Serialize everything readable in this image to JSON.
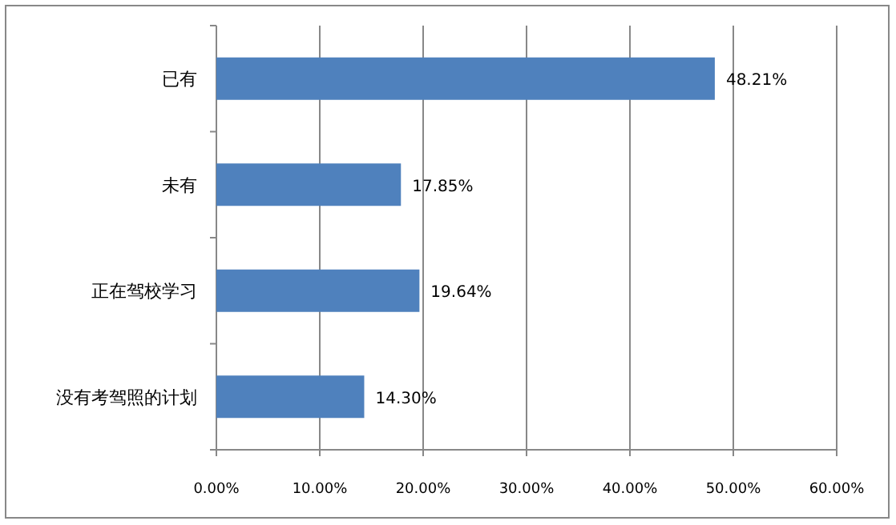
{
  "chart_data": {
    "type": "bar",
    "orientation": "horizontal",
    "categories": [
      "已有",
      "未有",
      "正在驾校学习",
      "没有考驾照的计划"
    ],
    "values": [
      48.21,
      17.85,
      19.64,
      14.3
    ],
    "value_labels": [
      "48.21%",
      "17.85%",
      "19.64%",
      "14.30%"
    ],
    "color": "#4f81bd",
    "xlim": [
      0,
      60
    ],
    "xticks": [
      {
        "value": 0,
        "label": "0.00%"
      },
      {
        "value": 10,
        "label": "10.00%"
      },
      {
        "value": 20,
        "label": "20.00%"
      },
      {
        "value": 30,
        "label": "30.00%"
      },
      {
        "value": 40,
        "label": "40.00%"
      },
      {
        "value": 50,
        "label": "50.00%"
      },
      {
        "value": 60,
        "label": "60.00%"
      }
    ],
    "grid": "x"
  }
}
